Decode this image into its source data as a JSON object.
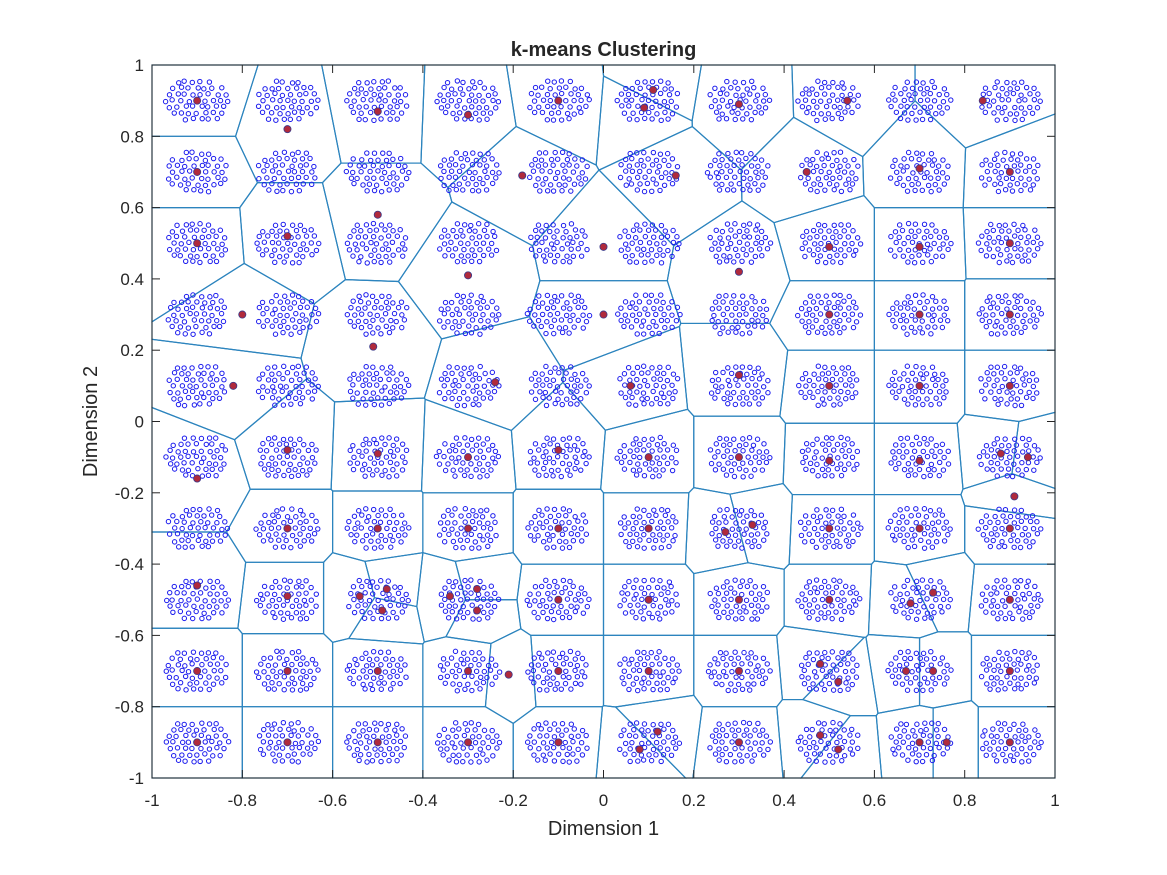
{
  "chart_data": {
    "type": "scatter",
    "title": "k-means Clustering",
    "xlabel": "Dimension 1",
    "ylabel": "Dimension 2",
    "xlim": [
      -1,
      1
    ],
    "ylim": [
      -1,
      1
    ],
    "xticks": [
      -1,
      -0.8,
      -0.6,
      -0.4,
      -0.2,
      0,
      0.2,
      0.4,
      0.6,
      0.8,
      1
    ],
    "yticks": [
      -1,
      -0.8,
      -0.6,
      -0.4,
      -0.2,
      0,
      0.2,
      0.4,
      0.6,
      0.8,
      1
    ],
    "xtick_labels": [
      "-1",
      "-0.8",
      "-0.6",
      "-0.4",
      "-0.2",
      "0",
      "0.2",
      "0.4",
      "0.6",
      "0.8",
      "1"
    ],
    "ytick_labels": [
      "-1",
      "-0.8",
      "-0.6",
      "-0.4",
      "-0.2",
      "0",
      "0.2",
      "0.4",
      "0.6",
      "0.8",
      "1"
    ],
    "grid": false,
    "data_blob_centers_x": [
      -0.9,
      -0.7,
      -0.5,
      -0.3,
      -0.1,
      0.1,
      0.3,
      0.5,
      0.7,
      0.9
    ],
    "data_blob_centers_y": [
      -0.9,
      -0.7,
      -0.5,
      -0.3,
      -0.1,
      0.1,
      0.3,
      0.5,
      0.7,
      0.9
    ],
    "data_blob_radius": 0.07,
    "points_per_blob": 70,
    "colors": {
      "data_points": "#1a1aee",
      "centroids": "#b02a3c",
      "boundaries": "#2c84be"
    },
    "centroids": [
      [
        -0.9,
        0.9
      ],
      [
        -0.7,
        0.82
      ],
      [
        -0.5,
        0.87
      ],
      [
        -0.3,
        0.86
      ],
      [
        -0.1,
        0.9
      ],
      [
        0.11,
        0.93
      ],
      [
        0.09,
        0.88
      ],
      [
        0.3,
        0.89
      ],
      [
        0.54,
        0.9
      ],
      [
        0.84,
        0.9
      ],
      [
        -0.9,
        0.7
      ],
      [
        -0.18,
        0.69
      ],
      [
        0.16,
        0.69
      ],
      [
        0.45,
        0.7
      ],
      [
        0.7,
        0.71
      ],
      [
        0.9,
        0.7
      ],
      [
        -0.9,
        0.5
      ],
      [
        -0.7,
        0.52
      ],
      [
        -0.5,
        0.58
      ],
      [
        0.0,
        0.49
      ],
      [
        0.5,
        0.49
      ],
      [
        0.7,
        0.49
      ],
      [
        0.9,
        0.5
      ],
      [
        -0.3,
        0.41
      ],
      [
        0.3,
        0.42
      ],
      [
        -0.8,
        0.3
      ],
      [
        0.0,
        0.3
      ],
      [
        0.5,
        0.3
      ],
      [
        0.7,
        0.3
      ],
      [
        0.9,
        0.3
      ],
      [
        -0.51,
        0.21
      ],
      [
        -0.82,
        0.1
      ],
      [
        -0.24,
        0.11
      ],
      [
        0.06,
        0.1
      ],
      [
        0.3,
        0.13
      ],
      [
        0.5,
        0.1
      ],
      [
        0.7,
        0.1
      ],
      [
        0.9,
        0.1
      ],
      [
        -0.9,
        -0.16
      ],
      [
        -0.7,
        -0.08
      ],
      [
        -0.5,
        -0.09
      ],
      [
        -0.3,
        -0.1
      ],
      [
        -0.1,
        -0.08
      ],
      [
        0.1,
        -0.1
      ],
      [
        0.3,
        -0.1
      ],
      [
        0.5,
        -0.11
      ],
      [
        0.7,
        -0.11
      ],
      [
        0.88,
        -0.09
      ],
      [
        0.94,
        -0.1
      ],
      [
        0.91,
        -0.21
      ],
      [
        -0.7,
        -0.3
      ],
      [
        -0.5,
        -0.3
      ],
      [
        -0.3,
        -0.3
      ],
      [
        -0.1,
        -0.3
      ],
      [
        0.1,
        -0.3
      ],
      [
        0.27,
        -0.31
      ],
      [
        0.33,
        -0.29
      ],
      [
        0.5,
        -0.3
      ],
      [
        0.7,
        -0.3
      ],
      [
        0.9,
        -0.3
      ],
      [
        -0.9,
        -0.46
      ],
      [
        -0.7,
        -0.49
      ],
      [
        -0.54,
        -0.49
      ],
      [
        -0.48,
        -0.47
      ],
      [
        -0.49,
        -0.53
      ],
      [
        -0.34,
        -0.49
      ],
      [
        -0.28,
        -0.47
      ],
      [
        -0.28,
        -0.53
      ],
      [
        -0.1,
        -0.5
      ],
      [
        0.1,
        -0.5
      ],
      [
        0.3,
        -0.5
      ],
      [
        0.5,
        -0.5
      ],
      [
        0.68,
        -0.51
      ],
      [
        0.73,
        -0.48
      ],
      [
        0.9,
        -0.5
      ],
      [
        -0.9,
        -0.7
      ],
      [
        -0.7,
        -0.7
      ],
      [
        -0.5,
        -0.7
      ],
      [
        -0.3,
        -0.7
      ],
      [
        -0.21,
        -0.71
      ],
      [
        -0.1,
        -0.7
      ],
      [
        0.1,
        -0.7
      ],
      [
        0.3,
        -0.7
      ],
      [
        0.48,
        -0.68
      ],
      [
        0.52,
        -0.73
      ],
      [
        0.67,
        -0.7
      ],
      [
        0.73,
        -0.7
      ],
      [
        0.9,
        -0.7
      ],
      [
        -0.9,
        -0.9
      ],
      [
        -0.7,
        -0.9
      ],
      [
        -0.5,
        -0.9
      ],
      [
        -0.3,
        -0.9
      ],
      [
        -0.1,
        -0.9
      ],
      [
        0.08,
        -0.92
      ],
      [
        0.12,
        -0.87
      ],
      [
        0.3,
        -0.9
      ],
      [
        0.48,
        -0.88
      ],
      [
        0.52,
        -0.92
      ],
      [
        0.7,
        -0.9
      ],
      [
        0.76,
        -0.9
      ],
      [
        0.9,
        -0.9
      ]
    ]
  }
}
